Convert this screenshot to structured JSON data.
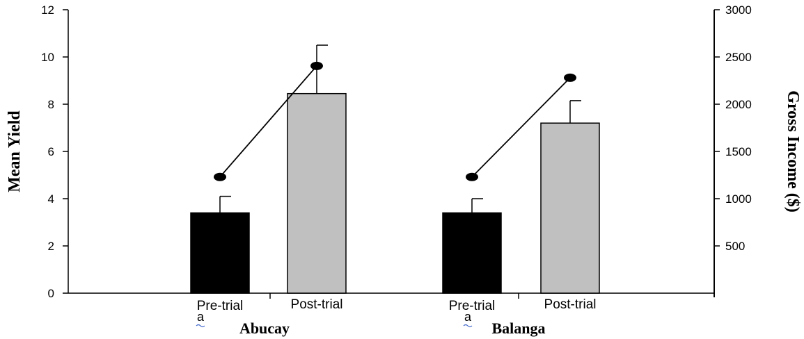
{
  "chart_data": {
    "type": "bar",
    "groups": [
      {
        "name": "Abucay",
        "categories": [
          "Pre-trial",
          "Post-trial"
        ]
      },
      {
        "name": "Balanga",
        "categories": [
          "Pre-trial",
          "Post-trial"
        ]
      }
    ],
    "group_markers": [
      "a",
      "a"
    ],
    "series": [
      {
        "axis": "left",
        "kind": "bar",
        "values": [
          3.4,
          8.45,
          3.4,
          7.2
        ],
        "error_upper": [
          0.7,
          2.05,
          0.6,
          0.95
        ],
        "colors": [
          "#000000",
          "#c0c0c0",
          "#000000",
          "#c0c0c0"
        ]
      },
      {
        "axis": "right",
        "kind": "line",
        "values": [
          1230,
          2405,
          1230,
          2280
        ],
        "color": "#000000"
      }
    ],
    "ylabel": "Mean Yield",
    "y2label": "Gross Income ($)",
    "ylim": [
      0,
      12
    ],
    "y2lim": [
      0,
      3000
    ],
    "y_ticks": [
      0,
      2,
      4,
      6,
      8,
      10,
      12
    ],
    "y2_ticks": [
      500,
      1000,
      1500,
      2000,
      2500,
      3000
    ],
    "grid": false,
    "legend": "none"
  }
}
